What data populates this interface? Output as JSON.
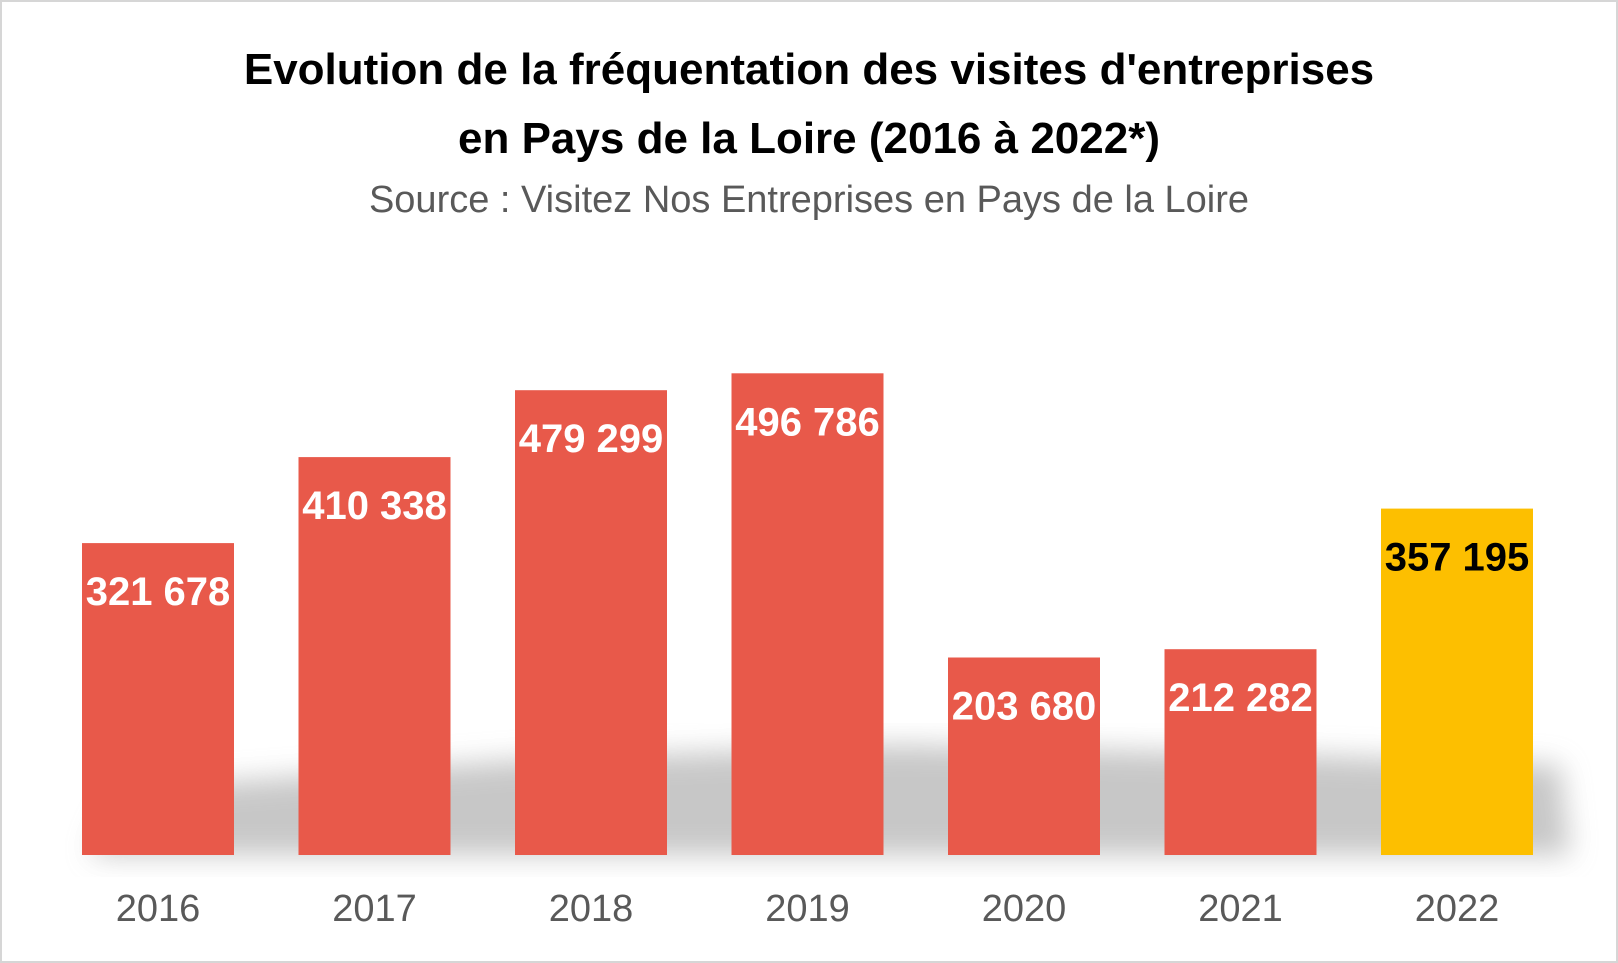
{
  "chart_data": {
    "type": "bar",
    "title": "Evolution de la fréquentation des visites d'entreprises",
    "title_line2": "en Pays de la Loire (2016 à 2022*)",
    "subtitle": "Source : Visitez Nos Entreprises en Pays de la Loire",
    "categories": [
      "2016",
      "2017",
      "2018",
      "2019",
      "2020",
      "2021",
      "2022"
    ],
    "values": [
      321678,
      410338,
      479299,
      496786,
      203680,
      212282,
      357195
    ],
    "data_labels": [
      "321 678",
      "410 338",
      "479 299",
      "496 786",
      "203 680",
      "212 282",
      "357 195"
    ],
    "bar_colors": [
      "#e8594a",
      "#e8594a",
      "#e8594a",
      "#e8594a",
      "#e8594a",
      "#e8594a",
      "#fdbf00"
    ],
    "label_colors": [
      "#ffffff",
      "#ffffff",
      "#ffffff",
      "#ffffff",
      "#ffffff",
      "#ffffff",
      "#000000"
    ],
    "tick_color": "#595959",
    "ylim": [
      0,
      530000
    ],
    "grid": false,
    "legend": "none"
  }
}
